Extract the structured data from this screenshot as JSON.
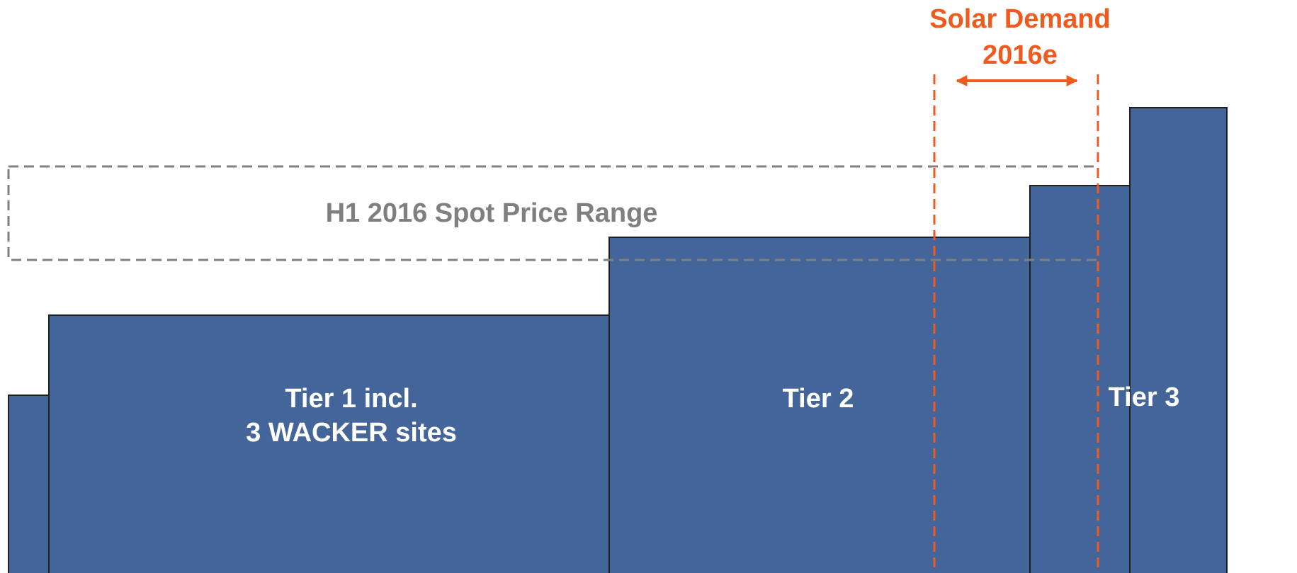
{
  "solar_demand": {
    "line1": "Solar Demand",
    "line2": "2016e"
  },
  "spot_price_range": "H1 2016 Spot Price Range",
  "tiers": [
    {
      "line1": "Tier 1 incl.",
      "line2": "3 WACKER sites"
    },
    {
      "line1": "Tier 2"
    },
    {
      "line1": "Tier 3"
    }
  ]
}
